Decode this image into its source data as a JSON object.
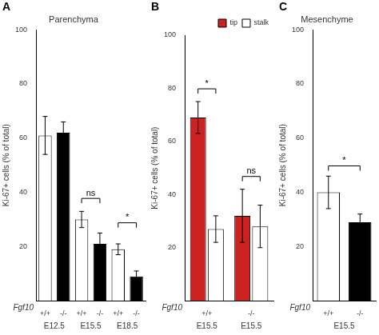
{
  "chart_data": [
    {
      "type": "bar",
      "panel_label": "A",
      "title": "Parenchyma",
      "categories": [
        "+/+",
        "-/-",
        "+/+",
        "-/-",
        "+/+",
        "-/-"
      ],
      "values": [
        61,
        62,
        30,
        21,
        19,
        9
      ],
      "errors": [
        7,
        4,
        3,
        4,
        2,
        2
      ],
      "colors": [
        "white",
        "black",
        "white",
        "black",
        "white",
        "black"
      ],
      "ylabel": "Ki-67+ cells (% of total)",
      "ylim": [
        0,
        100
      ],
      "yticks": [
        20,
        40,
        60,
        80,
        100
      ],
      "grid": false,
      "row_label": "Fgf10",
      "groups": [
        {
          "label": "E12.5",
          "span": [
            0,
            1
          ]
        },
        {
          "label": "E15.5",
          "span": [
            2,
            3
          ]
        },
        {
          "label": "E18.5",
          "span": [
            4,
            5
          ]
        }
      ],
      "significance": [
        {
          "label": "ns",
          "between": [
            [
              2,
              0
            ],
            [
              3,
              0
            ]
          ],
          "y": 36
        },
        {
          "label": "*",
          "between": [
            [
              4,
              0
            ],
            [
              5,
              0
            ]
          ],
          "y": 27
        }
      ]
    },
    {
      "type": "bar",
      "panel_label": "B",
      "categories": [
        "+/+",
        "-/-"
      ],
      "series": [
        {
          "name": "tip",
          "color": "#cc2222",
          "values": [
            69,
            32
          ],
          "errors": [
            6,
            10
          ]
        },
        {
          "name": "stalk",
          "color": "white",
          "values": [
            27,
            28
          ],
          "errors": [
            5,
            8
          ]
        }
      ],
      "legend": "upper right",
      "ylabel": "Ki-67+ cells (% of total)",
      "ylim": [
        0,
        100
      ],
      "yticks": [
        20,
        40,
        60,
        80,
        100
      ],
      "grid": false,
      "row_label": "Fgf10",
      "groups": [
        {
          "label": "E15.5",
          "span": [
            0,
            0
          ]
        },
        {
          "label": "E15.5",
          "span": [
            1,
            1
          ]
        }
      ],
      "significance": [
        {
          "label": "*",
          "between": [
            [
              0,
              0
            ],
            [
              0,
              1
            ]
          ],
          "y": 78
        },
        {
          "label": "ns",
          "between": [
            [
              1,
              0
            ],
            [
              1,
              1
            ]
          ],
          "y": 45
        }
      ]
    },
    {
      "type": "bar",
      "panel_label": "C",
      "title": "Mesenchyme",
      "categories": [
        "+/+",
        "-/-"
      ],
      "values": [
        40,
        29
      ],
      "errors": [
        6,
        3
      ],
      "colors": [
        "white",
        "black"
      ],
      "ylabel": "Ki-67+ cells (% of total)",
      "ylim": [
        0,
        100
      ],
      "yticks": [
        20,
        40,
        60,
        80,
        100
      ],
      "grid": false,
      "row_label": "Fgf10",
      "groups": [
        {
          "label": "E15.5",
          "span": [
            0,
            1
          ]
        }
      ],
      "significance": [
        {
          "label": "*",
          "between": [
            [
              0,
              0
            ],
            [
              1,
              0
            ]
          ],
          "y": 48
        }
      ]
    }
  ]
}
